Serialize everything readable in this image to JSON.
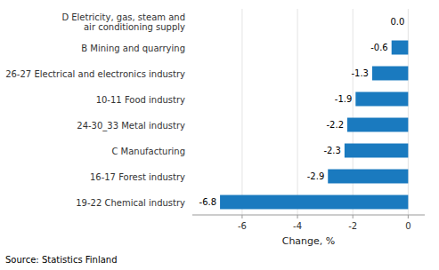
{
  "chart_data": {
    "type": "bar",
    "orientation": "horizontal",
    "categories": [
      "19-22 Chemical industry",
      "16-17 Forest industry",
      "C Manufacturing",
      "24-30_33 Metal industry",
      "10-11 Food industry",
      "26-27 Electrical and electronics industry",
      "B Mining and quarrying",
      "D Eletricity, gas, steam and\nair conditioning supply"
    ],
    "values": [
      -6.8,
      -2.9,
      -2.3,
      -2.2,
      -1.9,
      -1.3,
      -0.6,
      0.0
    ],
    "value_labels": [
      "-6.8",
      "-2.9",
      "-2.3",
      "-2.2",
      "-1.9",
      "-1.3",
      "-0.6",
      "0.0"
    ],
    "data_labels": true,
    "color": "#1a7abf",
    "xlabel": "Change, %",
    "annotation": "Source: Statistics Finland",
    "xlim": [
      -7.8,
      0.6
    ],
    "xticks": [
      -6,
      -4,
      -2,
      0
    ],
    "grid": true
  }
}
